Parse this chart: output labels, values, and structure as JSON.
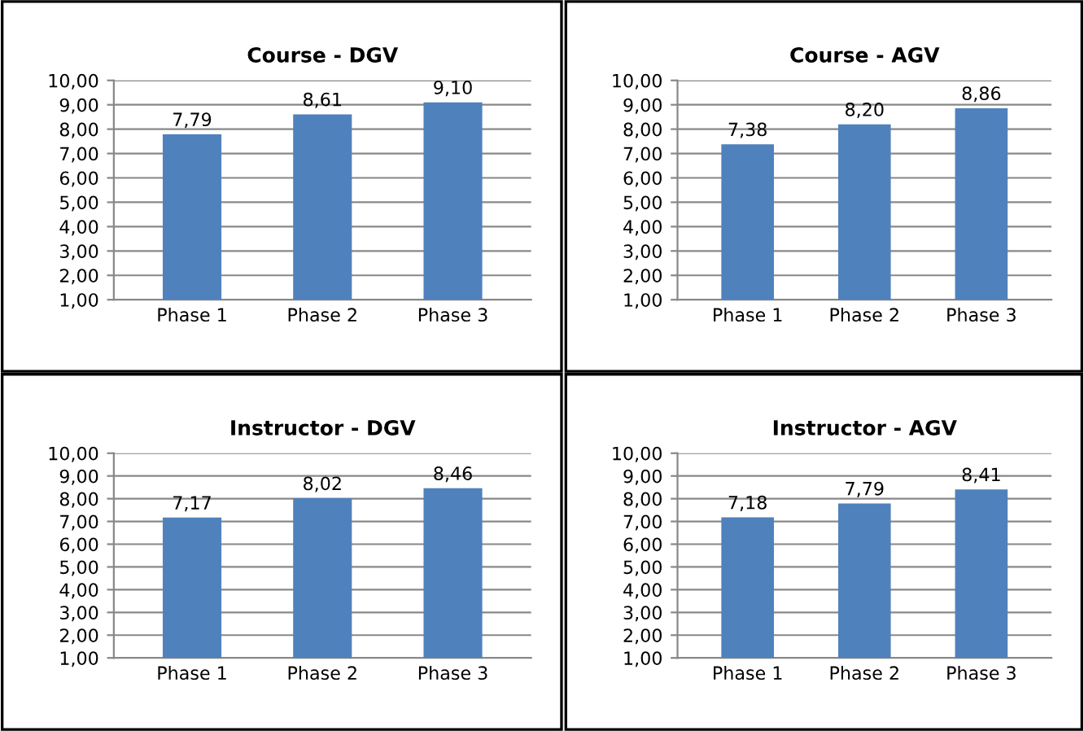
{
  "chart_data": [
    {
      "type": "bar",
      "title": "Course - DGV",
      "categories": [
        "Phase 1",
        "Phase 2",
        "Phase 3"
      ],
      "values": [
        7.79,
        8.61,
        9.1
      ],
      "value_labels": [
        "7,79",
        "8,61",
        "9,10"
      ],
      "color": "#4f81bd",
      "ylim": [
        1,
        10
      ],
      "yticks": [
        {
          "value": 1,
          "label": "1,00"
        },
        {
          "value": 2,
          "label": "2,00"
        },
        {
          "value": 3,
          "label": "3,00"
        },
        {
          "value": 4,
          "label": "4,00"
        },
        {
          "value": 5,
          "label": "5,00"
        },
        {
          "value": 6,
          "label": "6,00"
        },
        {
          "value": 7,
          "label": "7,00"
        },
        {
          "value": 8,
          "label": "8,00"
        },
        {
          "value": 9,
          "label": "9,00"
        },
        {
          "value": 10,
          "label": "10,00"
        }
      ],
      "grid": "y"
    },
    {
      "type": "bar",
      "title": "Course - AGV",
      "categories": [
        "Phase 1",
        "Phase 2",
        "Phase 3"
      ],
      "values": [
        7.38,
        8.2,
        8.86
      ],
      "value_labels": [
        "7,38",
        "8,20",
        "8,86"
      ],
      "color": "#4f81bd",
      "ylim": [
        1,
        10
      ],
      "yticks": [
        {
          "value": 1,
          "label": "1,00"
        },
        {
          "value": 2,
          "label": "2,00"
        },
        {
          "value": 3,
          "label": "3,00"
        },
        {
          "value": 4,
          "label": "4,00"
        },
        {
          "value": 5,
          "label": "5,00"
        },
        {
          "value": 6,
          "label": "6,00"
        },
        {
          "value": 7,
          "label": "7,00"
        },
        {
          "value": 8,
          "label": "8,00"
        },
        {
          "value": 9,
          "label": "9,00"
        },
        {
          "value": 10,
          "label": "10,00"
        }
      ],
      "grid": "y"
    },
    {
      "type": "bar",
      "title": "Instructor - DGV",
      "categories": [
        "Phase 1",
        "Phase 2",
        "Phase 3"
      ],
      "values": [
        7.17,
        8.02,
        8.46
      ],
      "value_labels": [
        "7,17",
        "8,02",
        "8,46"
      ],
      "color": "#4f81bd",
      "ylim": [
        1,
        10
      ],
      "yticks": [
        {
          "value": 1,
          "label": "1,00"
        },
        {
          "value": 2,
          "label": "2,00"
        },
        {
          "value": 3,
          "label": "3,00"
        },
        {
          "value": 4,
          "label": "4,00"
        },
        {
          "value": 5,
          "label": "5,00"
        },
        {
          "value": 6,
          "label": "6,00"
        },
        {
          "value": 7,
          "label": "7,00"
        },
        {
          "value": 8,
          "label": "8,00"
        },
        {
          "value": 9,
          "label": "9,00"
        },
        {
          "value": 10,
          "label": "10,00"
        }
      ],
      "grid": "y"
    },
    {
      "type": "bar",
      "title": "Instructor - AGV",
      "categories": [
        "Phase 1",
        "Phase 2",
        "Phase 3"
      ],
      "values": [
        7.18,
        7.79,
        8.41
      ],
      "value_labels": [
        "7,18",
        "7,79",
        "8,41"
      ],
      "color": "#4f81bd",
      "ylim": [
        1,
        10
      ],
      "yticks": [
        {
          "value": 1,
          "label": "1,00"
        },
        {
          "value": 2,
          "label": "2,00"
        },
        {
          "value": 3,
          "label": "3,00"
        },
        {
          "value": 4,
          "label": "4,00"
        },
        {
          "value": 5,
          "label": "5,00"
        },
        {
          "value": 6,
          "label": "6,00"
        },
        {
          "value": 7,
          "label": "7,00"
        },
        {
          "value": 8,
          "label": "8,00"
        },
        {
          "value": 9,
          "label": "9,00"
        },
        {
          "value": 10,
          "label": "10,00"
        }
      ],
      "grid": "y"
    }
  ]
}
